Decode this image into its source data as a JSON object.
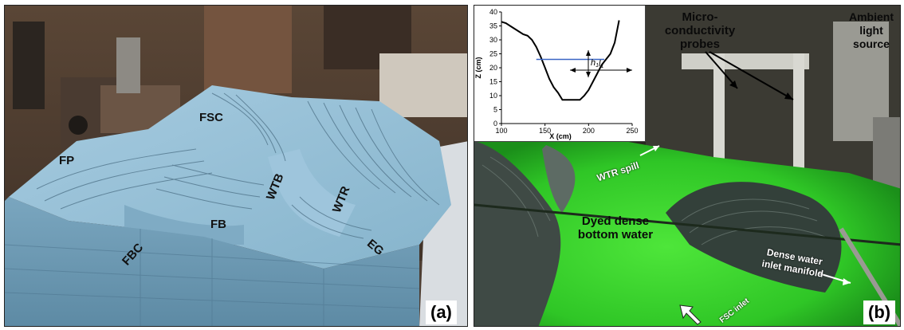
{
  "panel_a": {
    "labels": {
      "fsc": "FSC",
      "fp": "FP",
      "wtb": "WTB",
      "wtr": "WTR",
      "fb": "FB",
      "fbc": "FBC",
      "eg": "EG"
    },
    "panel_letter": "(a)"
  },
  "panel_b": {
    "labels": {
      "probes": "Micro-\nconductivity\nprobes",
      "ambient": "Ambient\nlight\nsource",
      "wtr_spill": "WTR spill",
      "dyed": "Dyed dense\nbottom water",
      "manifold": "Dense water\ninlet manifold",
      "fsc_inlet": "FSC inlet"
    },
    "panel_letter": "(b)",
    "inset": {
      "x_ticks": [
        "100",
        "150",
        "200",
        "250"
      ],
      "y_ticks": [
        "40",
        "35",
        "30",
        "25",
        "20",
        "15",
        "10",
        "5",
        "0"
      ],
      "xlabel": "X (cm)",
      "ylabel": "Z (cm)",
      "l_label": "l",
      "l_sub": "1",
      "h_label": "h",
      "h_sub": "1"
    }
  },
  "colors": {
    "foam_blue": "#8db8d0",
    "dye_green": "#39d430",
    "water_line": "#3a66c4"
  },
  "chart_data": {
    "type": "line",
    "xlabel": "X (cm)",
    "ylabel": "Z (cm)",
    "xlim": [
      100,
      250
    ],
    "ylim": [
      0,
      40
    ],
    "series": [
      {
        "x": [
          100,
          105,
          110,
          115,
          120,
          125,
          130,
          135,
          140,
          145,
          150,
          155,
          160,
          165,
          170,
          175,
          180,
          185,
          190,
          195,
          200,
          205,
          210,
          215,
          220,
          225,
          230,
          235
        ],
        "y": [
          36.5,
          36,
          35,
          34,
          33,
          32,
          31.5,
          30,
          27.5,
          24,
          20,
          16,
          13,
          11,
          8.5,
          8.5,
          8.5,
          8.5,
          8.5,
          10,
          12,
          15,
          18,
          21,
          23,
          25,
          29,
          37
        ]
      },
      {
        "x": [
          140,
          218
        ],
        "y": [
          23,
          23
        ]
      }
    ]
  }
}
